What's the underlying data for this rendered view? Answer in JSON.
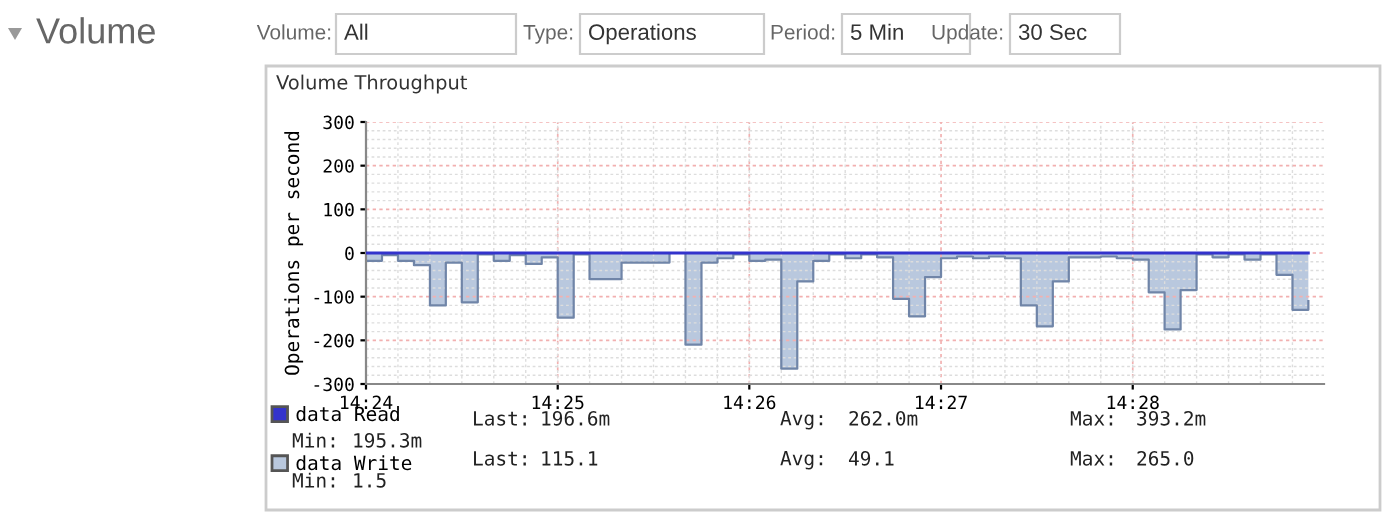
{
  "chart_data": {
    "type": "area",
    "title": "Volume Throughput",
    "ylabel": "Operations per second",
    "x": [
      14.4,
      14.40139,
      14.40278,
      14.40417,
      14.40556,
      14.40694,
      14.40833,
      14.40972,
      14.41111,
      14.4125,
      14.41389,
      14.41528,
      14.41667,
      14.41806,
      14.41944,
      14.42083,
      14.42222,
      14.42361,
      14.425,
      14.42639,
      14.42778,
      14.42917,
      14.43056,
      14.43194,
      14.43333,
      14.43472,
      14.43611,
      14.4375,
      14.43889,
      14.44028,
      14.44167,
      14.44306,
      14.44444,
      14.44583,
      14.44722,
      14.44861,
      14.45,
      14.45139,
      14.45278,
      14.45417,
      14.45556,
      14.45694,
      14.45833,
      14.45972,
      14.46111,
      14.4625,
      14.46389,
      14.46528,
      14.46667,
      14.46806,
      14.46944,
      14.47083,
      14.47222,
      14.47361,
      14.475,
      14.47639,
      14.47778,
      14.47917,
      14.48056,
      14.48194
    ],
    "series": [
      {
        "name": "data Read",
        "type": "line",
        "color": "#3333cc",
        "values": [
          0,
          0,
          0,
          0,
          0,
          0,
          0,
          0,
          0,
          0,
          0,
          0,
          0,
          0,
          0,
          0,
          0,
          0,
          0,
          0,
          0,
          0,
          0,
          0,
          0,
          0,
          0,
          0,
          0,
          0,
          0,
          0,
          0,
          0,
          0,
          0,
          0,
          0,
          0,
          0,
          0,
          0,
          0,
          0,
          0,
          0,
          0,
          0,
          0,
          0,
          0,
          0,
          0,
          0,
          0,
          0,
          0,
          0,
          0,
          0
        ]
      },
      {
        "name": "data Write",
        "color": "#b9c8de",
        "values": [
          -18,
          -5,
          -18,
          -28,
          -120,
          -22,
          -113,
          -3,
          -18,
          -5,
          -25,
          -10,
          -148,
          -3,
          -60,
          -60,
          -22,
          -22,
          -22,
          0,
          -210,
          -22,
          -12,
          -3,
          -18,
          -15,
          -265,
          -65,
          -18,
          -3,
          -12,
          -3,
          -10,
          -105,
          -145,
          -55,
          -12,
          -8,
          -12,
          -8,
          -12,
          -120,
          -168,
          -65,
          -10,
          -10,
          -8,
          -12,
          -15,
          -90,
          -175,
          -85,
          -3,
          -10,
          -3,
          -15,
          -3,
          -50,
          -130,
          -110
        ]
      }
    ],
    "xlim": [
      14.4,
      14.4833
    ],
    "xticks": [
      {
        "value": 14.4,
        "label": "14:24"
      },
      {
        "value": 14.41667,
        "label": "14:25"
      },
      {
        "value": 14.43333,
        "label": "14:26"
      },
      {
        "value": 14.45,
        "label": "14:27"
      },
      {
        "value": 14.46667,
        "label": "14:28"
      }
    ],
    "ylim": [
      -300,
      300
    ],
    "yticks": [
      -300,
      -200,
      -100,
      0,
      100,
      200,
      300
    ],
    "grid": true,
    "legend": "bottom left",
    "annotations": [
      "Volume",
      "Volume:",
      "All",
      "Type:",
      "Operations",
      "Period:",
      "5 Min",
      "Update:",
      "30 Sec",
      "Last:",
      "196.6m",
      "Avg:",
      "262.0m",
      "Max:",
      "393.2m",
      "Min:",
      "195.3m",
      "Last:",
      "115.1",
      "Avg:",
      "49.1",
      "Max:",
      "265.0",
      "Min:",
      "1.5"
    ]
  }
}
